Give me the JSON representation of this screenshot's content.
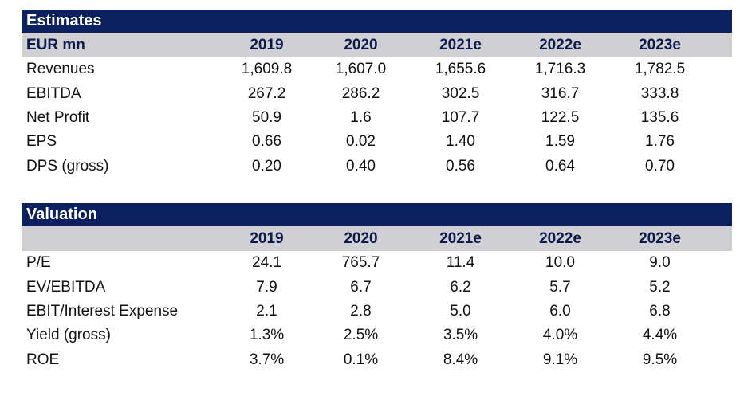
{
  "estimates": {
    "title": "Estimates",
    "unit_label": "EUR mn",
    "years": [
      "2019",
      "2020",
      "2021e",
      "2022e",
      "2023e"
    ],
    "rows": [
      {
        "label": "Revenues",
        "values": [
          "1,609.8",
          "1,607.0",
          "1,655.6",
          "1,716.3",
          "1,782.5"
        ]
      },
      {
        "label": "EBITDA",
        "values": [
          "267.2",
          "286.2",
          "302.5",
          "316.7",
          "333.8"
        ]
      },
      {
        "label": "Net Profit",
        "values": [
          "50.9",
          "1.6",
          "107.7",
          "122.5",
          "135.6"
        ]
      },
      {
        "label": "EPS",
        "values": [
          "0.66",
          "0.02",
          "1.40",
          "1.59",
          "1.76"
        ]
      },
      {
        "label": "DPS (gross)",
        "values": [
          "0.20",
          "0.40",
          "0.56",
          "0.64",
          "0.70"
        ]
      }
    ]
  },
  "valuation": {
    "title": "Valuation",
    "unit_label": "",
    "years": [
      "2019",
      "2020",
      "2021e",
      "2022e",
      "2023e"
    ],
    "rows": [
      {
        "label": "P/E",
        "values": [
          "24.1",
          "765.7",
          "11.4",
          "10.0",
          "9.0"
        ]
      },
      {
        "label": "EV/EBITDA",
        "values": [
          "7.9",
          "6.7",
          "6.2",
          "5.7",
          "5.2"
        ]
      },
      {
        "label": "EBIT/Interest Expense",
        "values": [
          "2.1",
          "2.8",
          "5.0",
          "6.0",
          "6.8"
        ]
      },
      {
        "label": "Yield (gross)",
        "values": [
          "1.3%",
          "2.5%",
          "3.5%",
          "4.0%",
          "4.4%"
        ]
      },
      {
        "label": "ROE",
        "values": [
          "3.7%",
          "0.1%",
          "8.4%",
          "9.1%",
          "9.5%"
        ]
      }
    ]
  },
  "colors": {
    "title_bar": "#0c1f5e",
    "header_row": "#d0d0d4"
  }
}
